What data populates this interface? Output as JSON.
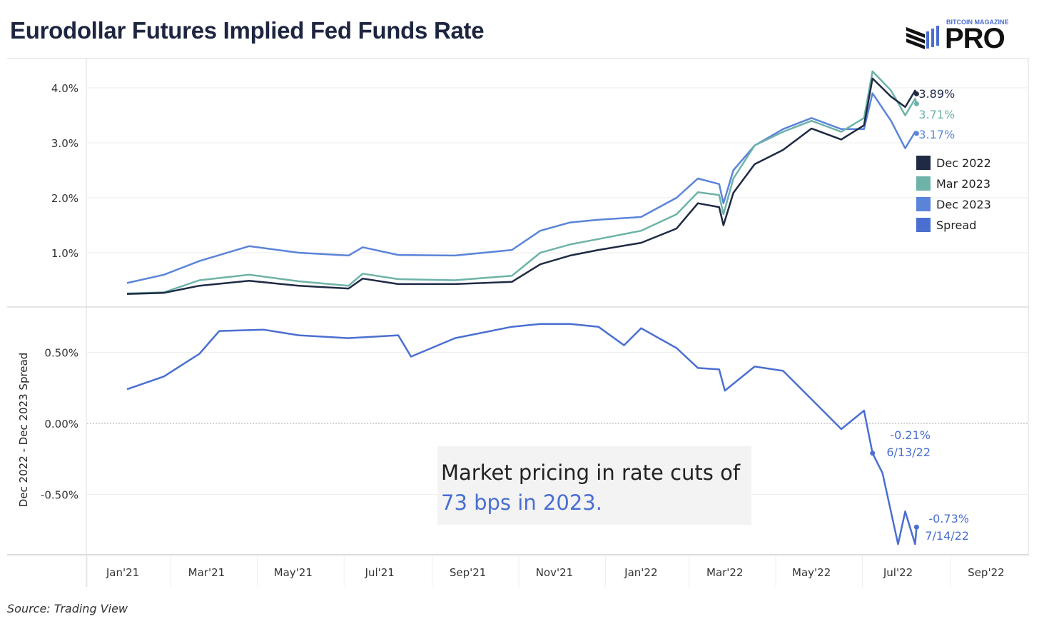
{
  "title": "Eurodollar Futures Implied Fed Funds Rate",
  "logo": {
    "small": "BITCOIN MAGAZINE",
    "big": "PRO"
  },
  "source": "Source: Trading View",
  "annotation": {
    "line1": "Market pricing in rate cuts of",
    "line2": "73 bps in 2023."
  },
  "colors": {
    "dec2022": "#1f2a44",
    "mar2023": "#6db3a8",
    "dec2023": "#5b84d9",
    "spread": "#4a6fd1"
  },
  "chart_data": [
    {
      "type": "line",
      "ylim": [
        0,
        4.4
      ],
      "y_ticks": [
        "4.0%",
        "3.0%",
        "2.0%",
        "1.0%"
      ],
      "y_tick_values": [
        4,
        3,
        2,
        1
      ],
      "grid": true,
      "legend_placement": "right",
      "legend": [
        "Dec 2022",
        "Mar 2023",
        "Dec 2023",
        "Spread"
      ],
      "x": [
        "2021-01-04",
        "2021-01-30",
        "2021-02-24",
        "2021-03-31",
        "2021-05-05",
        "2021-06-09",
        "2021-06-19",
        "2021-07-14",
        "2021-08-23",
        "2021-10-02",
        "2021-10-22",
        "2021-11-12",
        "2021-12-02",
        "2022-01-01",
        "2022-01-26",
        "2022-02-10",
        "2022-02-25",
        "2022-02-28",
        "2022-03-07",
        "2022-03-22",
        "2022-04-11",
        "2022-05-01",
        "2022-05-22",
        "2022-06-07",
        "2022-06-13",
        "2022-06-26",
        "2022-07-06",
        "2022-07-13",
        "2022-07-14"
      ],
      "series": [
        {
          "name": "Dec 2022",
          "values": [
            0.25,
            0.27,
            0.4,
            0.49,
            0.4,
            0.35,
            0.53,
            0.43,
            0.43,
            0.47,
            0.79,
            0.95,
            1.05,
            1.18,
            1.44,
            1.9,
            1.83,
            1.5,
            2.09,
            2.61,
            2.87,
            3.26,
            3.06,
            3.32,
            4.17,
            3.84,
            3.65,
            3.95,
            3.89
          ],
          "end_label": "3.89%"
        },
        {
          "name": "Mar 2023",
          "values": [
            0.26,
            0.28,
            0.5,
            0.6,
            0.48,
            0.4,
            0.62,
            0.52,
            0.5,
            0.58,
            1.0,
            1.15,
            1.25,
            1.4,
            1.7,
            2.1,
            2.05,
            1.7,
            2.35,
            2.95,
            3.2,
            3.4,
            3.2,
            3.45,
            4.3,
            3.95,
            3.5,
            3.8,
            3.71
          ],
          "end_label": "3.71%"
        },
        {
          "name": "Dec 2023",
          "values": [
            0.45,
            0.6,
            0.85,
            1.12,
            1.0,
            0.95,
            1.1,
            0.96,
            0.95,
            1.05,
            1.4,
            1.55,
            1.6,
            1.65,
            2.0,
            2.35,
            2.25,
            1.9,
            2.5,
            2.95,
            3.25,
            3.45,
            3.25,
            3.25,
            3.9,
            3.4,
            2.9,
            3.2,
            3.17
          ],
          "end_label": "3.17%"
        }
      ]
    },
    {
      "type": "line",
      "ylabel": "Dec 2022 - Dec 2023 Spread",
      "ylim": [
        -0.93,
        0.81
      ],
      "y_ticks": [
        "0.50%",
        "0.00%",
        "-0.50%"
      ],
      "y_tick_values": [
        0.5,
        0,
        -0.5
      ],
      "grid": true,
      "x_ticks": [
        "Jan'21",
        "Mar'21",
        "May'21",
        "Jul'21",
        "Sep'21",
        "Nov'21",
        "Jan'22",
        "Mar'22",
        "May'22",
        "Jul'22",
        "Sep'22"
      ],
      "x_tick_dates": [
        "2021-01-01",
        "2021-03-01",
        "2021-05-01",
        "2021-07-01",
        "2021-09-01",
        "2021-11-01",
        "2022-01-01",
        "2022-03-01",
        "2022-05-01",
        "2022-07-01",
        "2022-09-01"
      ],
      "x": [
        "2021-01-04",
        "2021-01-30",
        "2021-02-24",
        "2021-03-10",
        "2021-04-10",
        "2021-05-05",
        "2021-06-09",
        "2021-07-14",
        "2021-07-23",
        "2021-08-23",
        "2021-10-02",
        "2021-10-22",
        "2021-11-12",
        "2021-12-02",
        "2021-12-20",
        "2022-01-01",
        "2022-01-26",
        "2022-02-10",
        "2022-02-25",
        "2022-03-01",
        "2022-03-22",
        "2022-04-11",
        "2022-05-01",
        "2022-05-22",
        "2022-06-07",
        "2022-06-13",
        "2022-06-20",
        "2022-07-01",
        "2022-07-06",
        "2022-07-13",
        "2022-07-14"
      ],
      "series": [
        {
          "name": "Spread",
          "values": [
            0.24,
            0.33,
            0.49,
            0.65,
            0.66,
            0.62,
            0.6,
            0.62,
            0.47,
            0.6,
            0.68,
            0.7,
            0.7,
            0.68,
            0.55,
            0.67,
            0.53,
            0.39,
            0.38,
            0.23,
            0.4,
            0.37,
            0.17,
            -0.04,
            0.09,
            -0.21,
            -0.35,
            -0.85,
            -0.62,
            -0.85,
            -0.73
          ]
        }
      ],
      "annotations": [
        {
          "value": "-0.21%",
          "date": "6/13/22"
        },
        {
          "value": "-0.73%",
          "date": "7/14/22"
        }
      ]
    }
  ]
}
